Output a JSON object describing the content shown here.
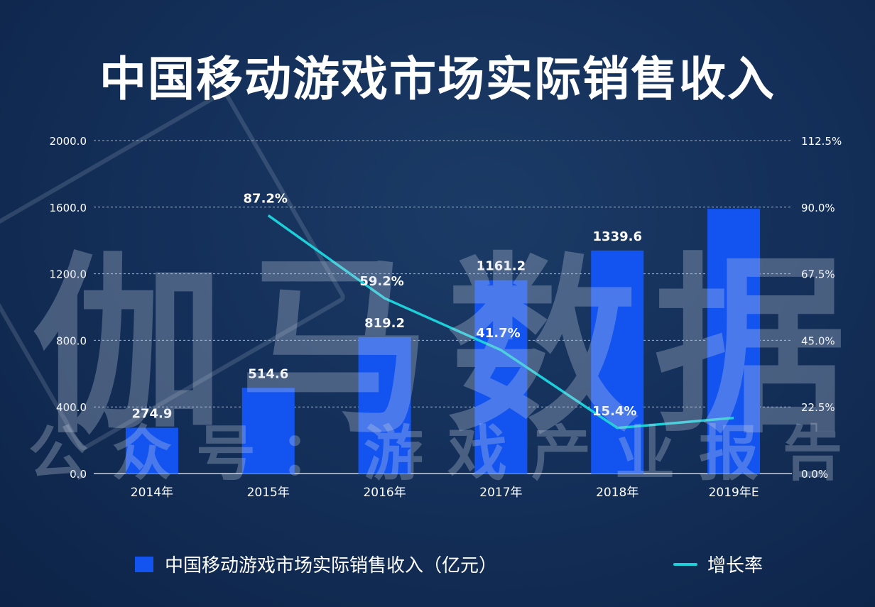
{
  "title": "中国移动游戏市场实际销售收入",
  "watermark_main": "伽马数据",
  "watermark_sub": "公众号：游戏产业报告",
  "colors": {
    "bar": "#1354f0",
    "line": "#1ccfd8",
    "text": "#ffffff",
    "grid": "#c8d2e0"
  },
  "chart_data": {
    "type": "bar",
    "categories": [
      "2014年",
      "2015年",
      "2016年",
      "2017年",
      "2018年",
      "2019年E"
    ],
    "series": [
      {
        "name": "中国移动游戏市场实际销售收入（亿元）",
        "type": "bar",
        "axis": "left",
        "values": [
          274.9,
          514.6,
          819.2,
          1161.2,
          1339.6,
          1590
        ],
        "labels": [
          "274.9",
          "514.6",
          "819.2",
          "1161.2",
          "1339.6",
          ""
        ]
      },
      {
        "name": "增长率",
        "type": "line",
        "axis": "right",
        "values": [
          null,
          87.2,
          59.2,
          41.7,
          15.4,
          18.8
        ],
        "labels": [
          "",
          "87.2%",
          "59.2%",
          "41.7%",
          "15.4%",
          ""
        ]
      }
    ],
    "y_left": {
      "range": [
        0,
        2000
      ],
      "ticks": [
        "0.0",
        "400.0",
        "800.0",
        "1200.0",
        "1600.0",
        "2000.0"
      ]
    },
    "y_right": {
      "range": [
        0,
        112.5
      ],
      "ticks": [
        "0.0%",
        "22.5%",
        "45.0%",
        "67.5%",
        "90.0%",
        "112.5%"
      ]
    },
    "grid": true,
    "legend_position": "bottom"
  }
}
